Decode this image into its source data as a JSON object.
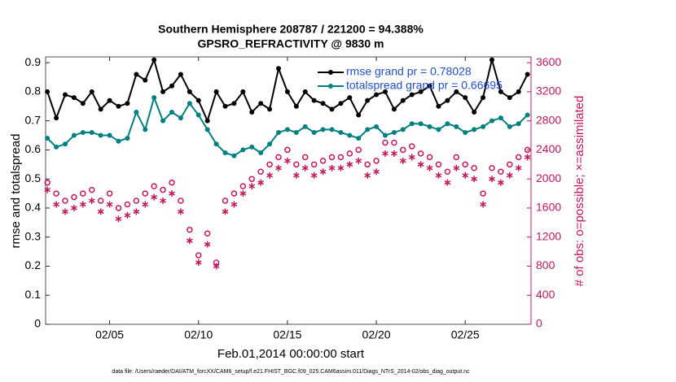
{
  "chart_data": {
    "type": "line",
    "title": "Southern Hemisphere 208787 / 221200 = 94.388%",
    "subtitle": "GPSRO_REFRACTIVITY @ 9830 m",
    "xlabel": "Feb.01,2014 00:00:00 start",
    "ylabel": "rmse and totalspread",
    "y2label": "# of obs: o=possible; ×=assimilated",
    "footnote": "data file: /Users/raeder/DAI/ATM_forcXX/CAM6_setup/f.e21.FHIST_BGC.f09_025.CAM6assim.011/Diags_NTrS_2014-02/obs_diag_output.nc",
    "x": [
      1.5,
      2,
      2.5,
      3,
      3.5,
      4,
      4.5,
      5,
      5.5,
      6,
      6.5,
      7,
      7.5,
      8,
      8.5,
      9,
      9.5,
      10,
      10.5,
      11,
      11.5,
      12,
      12.5,
      13,
      13.5,
      14,
      14.5,
      15,
      15.5,
      16,
      16.5,
      17,
      17.5,
      18,
      18.5,
      19,
      19.5,
      20,
      20.5,
      21,
      21.5,
      22,
      22.5,
      23,
      23.5,
      24,
      24.5,
      25,
      25.5,
      26,
      26.5,
      27,
      27.5,
      28,
      28.5
    ],
    "xlim": [
      1.4,
      28.7
    ],
    "xticks": [
      {
        "value": 5,
        "label": "02/05"
      },
      {
        "value": 10,
        "label": "02/10"
      },
      {
        "value": 15,
        "label": "02/15"
      },
      {
        "value": 20,
        "label": "02/20"
      },
      {
        "value": 25,
        "label": "02/25"
      }
    ],
    "ylim": [
      0,
      0.92
    ],
    "yticks": [
      0,
      0.1,
      0.2,
      0.3,
      0.4,
      0.5,
      0.6,
      0.7,
      0.8,
      0.9
    ],
    "y2lim": [
      0,
      3680
    ],
    "y2ticks": [
      0,
      400,
      800,
      1200,
      1600,
      2000,
      2400,
      2800,
      3200,
      3600
    ],
    "series": [
      {
        "name": "rmse grand pr = 0.78028",
        "color": "#000000",
        "marker": "dot",
        "values": [
          0.8,
          0.71,
          0.79,
          0.78,
          0.76,
          0.8,
          0.74,
          0.77,
          0.75,
          0.76,
          0.86,
          0.84,
          0.91,
          0.8,
          0.82,
          0.86,
          0.8,
          0.77,
          0.7,
          0.8,
          0.75,
          0.76,
          0.8,
          0.73,
          0.76,
          0.74,
          0.88,
          0.8,
          0.75,
          0.8,
          0.77,
          0.76,
          0.74,
          0.76,
          0.78,
          0.72,
          0.77,
          0.79,
          0.8,
          0.74,
          0.77,
          0.79,
          0.8,
          0.82,
          0.75,
          0.77,
          0.8,
          0.78,
          0.73,
          0.78,
          0.91,
          0.8,
          0.78,
          0.8,
          0.86
        ]
      },
      {
        "name": "totalspread grand pr = 0.66695",
        "color": "#008080",
        "marker": "dot",
        "values": [
          0.64,
          0.61,
          0.62,
          0.65,
          0.66,
          0.66,
          0.65,
          0.65,
          0.63,
          0.64,
          0.73,
          0.67,
          0.78,
          0.7,
          0.73,
          0.71,
          0.76,
          0.72,
          0.67,
          0.62,
          0.59,
          0.58,
          0.6,
          0.61,
          0.59,
          0.62,
          0.66,
          0.67,
          0.66,
          0.68,
          0.66,
          0.67,
          0.67,
          0.66,
          0.65,
          0.64,
          0.67,
          0.68,
          0.65,
          0.66,
          0.67,
          0.69,
          0.69,
          0.68,
          0.67,
          0.69,
          0.68,
          0.66,
          0.67,
          0.68,
          0.7,
          0.71,
          0.68,
          0.69,
          0.72
        ]
      },
      {
        "name": "possible",
        "color": "#c8175c",
        "marker": "circle",
        "axis": "y2",
        "values": [
          1950,
          1800,
          1700,
          1750,
          1800,
          1850,
          1700,
          1800,
          1600,
          1650,
          1700,
          1800,
          1900,
          1850,
          1950,
          1700,
          1300,
          950,
          1250,
          850,
          1700,
          1800,
          1900,
          2000,
          2100,
          2200,
          2300,
          2400,
          2200,
          2300,
          2200,
          2250,
          2300,
          2300,
          2350,
          2400,
          2200,
          2250,
          2500,
          2500,
          2400,
          2450,
          2350,
          2300,
          2200,
          2100,
          2300,
          2200,
          2150,
          1800,
          2150,
          2100,
          2200,
          2300,
          2400
        ]
      },
      {
        "name": "assimilated",
        "color": "#c8175c",
        "marker": "star",
        "axis": "y2",
        "values": [
          1850,
          1650,
          1550,
          1600,
          1650,
          1700,
          1550,
          1650,
          1450,
          1500,
          1550,
          1650,
          1750,
          1700,
          1800,
          1550,
          1150,
          850,
          1100,
          800,
          1550,
          1650,
          1800,
          1900,
          1950,
          2050,
          2150,
          2250,
          2050,
          2150,
          2050,
          2100,
          2150,
          2150,
          2200,
          2250,
          2050,
          2100,
          2350,
          2350,
          2250,
          2300,
          2200,
          2150,
          2050,
          1950,
          2150,
          2050,
          2000,
          1650,
          2000,
          1950,
          2050,
          2150,
          2300
        ]
      }
    ]
  }
}
